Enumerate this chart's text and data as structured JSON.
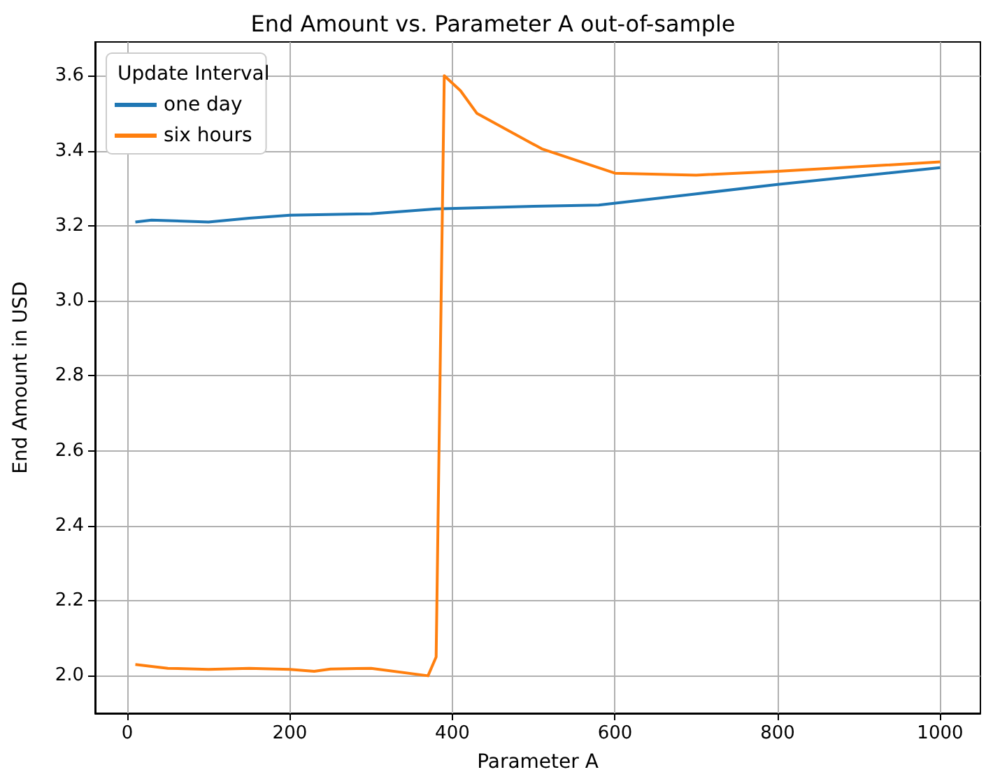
{
  "chart_data": {
    "type": "line",
    "title": "End Amount vs. Parameter A out-of-sample",
    "xlabel": "Parameter A",
    "ylabel": "End Amount in USD",
    "legend_title": "Update Interval",
    "legend": "top left",
    "grid": true,
    "marker": "none",
    "line_style": "solid",
    "xlim": [
      -39.5,
      1049.5
    ],
    "ylim": [
      1.9,
      3.69
    ],
    "xticks": [
      0,
      200,
      400,
      600,
      800,
      1000
    ],
    "yticks": [
      {
        "value": 2,
        "label": "2.0"
      },
      2.2,
      2.4,
      2.6,
      2.8,
      {
        "value": 3,
        "label": "3.0"
      },
      3.2,
      3.4,
      3.6
    ],
    "series": [
      {
        "name": "one day",
        "color": "#1f77b4",
        "x": [
          10,
          30,
          100,
          150,
          200,
          300,
          380,
          500,
          580,
          700,
          800,
          1000
        ],
        "values": [
          3.21,
          3.215,
          3.21,
          3.22,
          3.228,
          3.232,
          3.245,
          3.252,
          3.255,
          3.285,
          3.31,
          3.355
        ]
      },
      {
        "name": "six hours",
        "color": "#ff7f0e",
        "x": [
          10,
          50,
          100,
          150,
          200,
          230,
          250,
          300,
          370,
          380,
          390,
          410,
          430,
          510,
          600,
          700,
          800,
          1000
        ],
        "values": [
          2.03,
          2.02,
          2.017,
          2.02,
          2.017,
          2.012,
          2.018,
          2.02,
          2.0,
          2.05,
          3.6,
          3.56,
          3.5,
          3.405,
          3.34,
          3.335,
          3.345,
          3.37
        ]
      }
    ]
  }
}
